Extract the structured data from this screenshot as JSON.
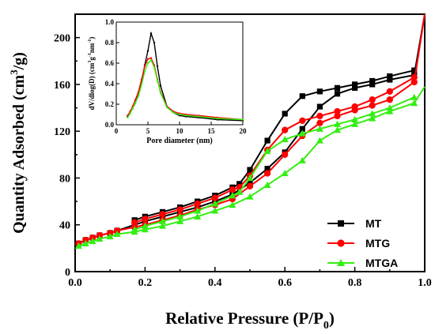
{
  "chart_data": [
    {
      "type": "line",
      "title": "",
      "xlabel": "Relative Pressure (P/P",
      "xlabel_sub": "0",
      "xlabel_end": ")",
      "ylabel": "Quantity Adsorbed (cm",
      "ylabel_sup": "3",
      "ylabel_end": "/g)",
      "xlim": [
        0,
        1
      ],
      "ylim": [
        0,
        220
      ],
      "xticks": [
        "0.0",
        "0.2",
        "0.4",
        "0.6",
        "0.8",
        "1.0"
      ],
      "yticks": [
        "0",
        "40",
        "80",
        "120",
        "160",
        "200"
      ],
      "legend_position": "bottom-right",
      "grid": false,
      "series": [
        {
          "name": "MT",
          "color": "#000000",
          "marker": "square",
          "adsorption": {
            "x": [
              0.01,
              0.03,
              0.05,
              0.07,
              0.1,
              0.12,
              0.17,
              0.2,
              0.25,
              0.3,
              0.35,
              0.4,
              0.45,
              0.5,
              0.55,
              0.6,
              0.65,
              0.7,
              0.75,
              0.8,
              0.85,
              0.9,
              0.97,
              1.0
            ],
            "y": [
              24,
              27,
              29,
              31,
              33,
              35,
              40,
              43,
              47,
              51,
              55,
              60,
              66,
              76,
              88,
              102,
              122,
              141,
              152,
              157,
              160,
              164,
              168,
              220
            ]
          },
          "desorption": {
            "x": [
              0.97,
              0.9,
              0.85,
              0.8,
              0.75,
              0.7,
              0.65,
              0.6,
              0.55,
              0.5,
              0.47,
              0.45,
              0.4,
              0.35,
              0.3,
              0.25,
              0.2,
              0.17
            ],
            "y": [
              172,
              167,
              163,
              160,
              157,
              154,
              150,
              135,
              112,
              87,
              75,
              72,
              65,
              60,
              55,
              51,
              47,
              44
            ]
          }
        },
        {
          "name": "MTG",
          "color": "#ff0000",
          "marker": "circle",
          "adsorption": {
            "x": [
              0.01,
              0.03,
              0.05,
              0.07,
              0.1,
              0.12,
              0.17,
              0.2,
              0.25,
              0.3,
              0.35,
              0.4,
              0.45,
              0.5,
              0.55,
              0.6,
              0.65,
              0.7,
              0.75,
              0.8,
              0.85,
              0.9,
              0.97,
              1.0
            ],
            "y": [
              24,
              27,
              29,
              31,
              33,
              35,
              38,
              40,
              44,
              48,
              53,
              57,
              62,
              73,
              84,
              100,
              116,
              127,
              133,
              138,
              142,
              147,
              162,
              220
            ]
          },
          "desorption": {
            "x": [
              0.97,
              0.9,
              0.85,
              0.8,
              0.75,
              0.7,
              0.65,
              0.6,
              0.55,
              0.5,
              0.47,
              0.45,
              0.4,
              0.35,
              0.3,
              0.25,
              0.2,
              0.17
            ],
            "y": [
              166,
              154,
              147,
              141,
              137,
              133,
              129,
              121,
              104,
              82,
              72,
              70,
              63,
              58,
              53,
              49,
              45,
              42
            ]
          }
        },
        {
          "name": "MTGA",
          "color": "#33ee11",
          "marker": "triangle",
          "adsorption": {
            "x": [
              0.01,
              0.03,
              0.05,
              0.07,
              0.1,
              0.12,
              0.17,
              0.2,
              0.25,
              0.3,
              0.35,
              0.4,
              0.45,
              0.5,
              0.55,
              0.6,
              0.65,
              0.7,
              0.75,
              0.8,
              0.85,
              0.9,
              0.97,
              1.0
            ],
            "y": [
              22,
              24,
              26,
              28,
              30,
              32,
              34,
              36,
              39,
              43,
              47,
              52,
              57,
              64,
              74,
              84,
              95,
              112,
              121,
              126,
              131,
              137,
              144,
              158
            ]
          },
          "desorption": {
            "x": [
              0.97,
              0.9,
              0.85,
              0.8,
              0.75,
              0.7,
              0.65,
              0.6,
              0.55,
              0.5,
              0.47,
              0.45,
              0.4,
              0.35,
              0.3,
              0.25,
              0.2,
              0.17
            ],
            "y": [
              149,
              140,
              135,
              130,
              126,
              122,
              118,
              113,
              103,
              80,
              68,
              65,
              58,
              52,
              47,
              43,
              39,
              36
            ]
          }
        }
      ]
    },
    {
      "type": "line",
      "title": "",
      "xlabel": "Pore diameter (nm)",
      "ylabel": "dV/dlog(D) (cm",
      "ylabel_sup1": "3",
      "ylabel_mid": "g",
      "ylabel_sup2": "-1",
      "ylabel_mid2": "nm",
      "ylabel_sup3": "-1",
      "ylabel_end": ")",
      "xlim": [
        0,
        20
      ],
      "ylim": [
        0,
        1.0
      ],
      "xticks": [
        "0",
        "5",
        "10",
        "15",
        "20"
      ],
      "yticks": [
        "0.0",
        "0.2",
        "0.4",
        "0.6",
        "0.8",
        "1.0"
      ],
      "series": [
        {
          "name": "MT",
          "color": "#000000",
          "x": [
            1.8,
            2.2,
            2.6,
            3.0,
            3.5,
            4.0,
            4.5,
            5.0,
            5.5,
            6.0,
            6.5,
            7.0,
            8.0,
            9.0,
            10.0,
            11.0,
            13.0,
            16.0,
            20.0
          ],
          "y": [
            0.08,
            0.12,
            0.16,
            0.21,
            0.29,
            0.42,
            0.58,
            0.72,
            0.89,
            0.8,
            0.57,
            0.38,
            0.18,
            0.12,
            0.09,
            0.08,
            0.07,
            0.05,
            0.04
          ]
        },
        {
          "name": "MTG",
          "color": "#ff0000",
          "x": [
            1.8,
            2.2,
            2.6,
            3.0,
            3.5,
            4.0,
            4.5,
            5.0,
            5.5,
            6.0,
            6.5,
            7.0,
            8.0,
            9.0,
            10.0,
            11.0,
            13.0,
            16.0,
            20.0
          ],
          "y": [
            0.09,
            0.13,
            0.18,
            0.24,
            0.32,
            0.44,
            0.57,
            0.64,
            0.65,
            0.58,
            0.44,
            0.32,
            0.18,
            0.13,
            0.11,
            0.1,
            0.09,
            0.07,
            0.05
          ]
        },
        {
          "name": "MTGA",
          "color": "#33ee11",
          "x": [
            1.8,
            2.2,
            2.6,
            3.0,
            3.5,
            4.0,
            4.5,
            5.0,
            5.5,
            6.0,
            6.5,
            7.0,
            8.0,
            9.0,
            10.0,
            11.0,
            13.0,
            16.0,
            20.0
          ],
          "y": [
            0.07,
            0.11,
            0.16,
            0.21,
            0.28,
            0.39,
            0.52,
            0.6,
            0.63,
            0.56,
            0.43,
            0.31,
            0.17,
            0.12,
            0.1,
            0.09,
            0.08,
            0.06,
            0.05
          ]
        }
      ]
    }
  ]
}
